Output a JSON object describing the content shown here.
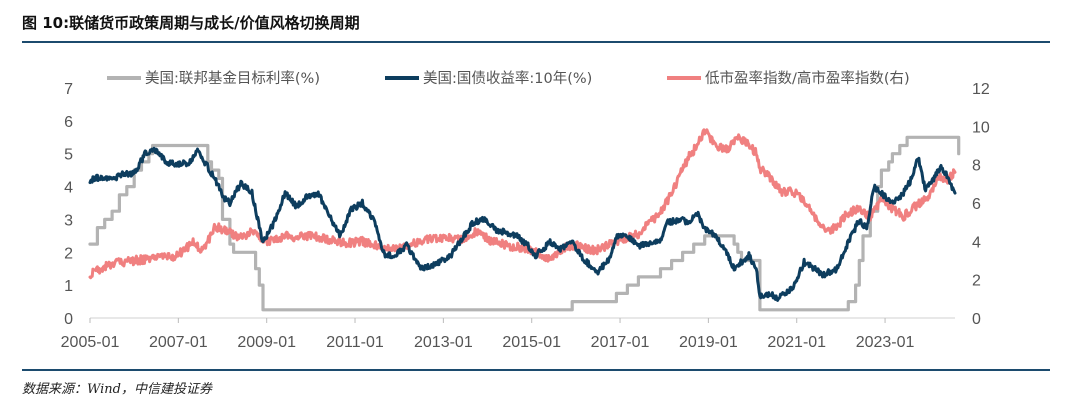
{
  "title": "图 10:联储货币政策周期与成长/价值风格切换周期",
  "source": "数据来源：Wind，中信建投证券",
  "chart_data": {
    "type": "line",
    "x_ticks": [
      "2005-01",
      "2007-01",
      "2009-01",
      "2011-01",
      "2013-01",
      "2015-01",
      "2017-01",
      "2019-01",
      "2021-01",
      "2023-01"
    ],
    "x_range": [
      "2005-01",
      "2024-08"
    ],
    "y_left": {
      "range": [
        0,
        7
      ],
      "ticks": [
        "0",
        "1",
        "2",
        "3",
        "4",
        "5",
        "6",
        "7"
      ]
    },
    "y_right": {
      "range": [
        0,
        12
      ],
      "ticks": [
        "0",
        "2",
        "4",
        "6",
        "8",
        "10",
        "12"
      ]
    },
    "grid": false,
    "legend_position": "top",
    "series": [
      {
        "name": "美国:联邦基金目标利率(%)",
        "axis": "left",
        "color": "#b3b3b3",
        "points": [
          [
            "2005-01",
            2.25
          ],
          [
            "2005-03",
            2.75
          ],
          [
            "2005-05",
            3.0
          ],
          [
            "2005-07",
            3.25
          ],
          [
            "2005-09",
            3.75
          ],
          [
            "2005-11",
            4.0
          ],
          [
            "2006-01",
            4.5
          ],
          [
            "2006-03",
            4.75
          ],
          [
            "2006-05",
            5.0
          ],
          [
            "2006-06",
            5.25
          ],
          [
            "2007-08",
            5.25
          ],
          [
            "2007-09",
            4.75
          ],
          [
            "2007-10",
            4.5
          ],
          [
            "2007-12",
            4.25
          ],
          [
            "2008-01",
            3.0
          ],
          [
            "2008-03",
            2.25
          ],
          [
            "2008-04",
            2.0
          ],
          [
            "2008-10",
            1.5
          ],
          [
            "2008-11",
            1.0
          ],
          [
            "2008-12",
            0.25
          ],
          [
            "2015-11",
            0.25
          ],
          [
            "2015-12",
            0.5
          ],
          [
            "2016-11",
            0.5
          ],
          [
            "2016-12",
            0.75
          ],
          [
            "2017-02",
            0.75
          ],
          [
            "2017-03",
            1.0
          ],
          [
            "2017-06",
            1.25
          ],
          [
            "2017-12",
            1.5
          ],
          [
            "2018-03",
            1.75
          ],
          [
            "2018-06",
            2.0
          ],
          [
            "2018-09",
            2.25
          ],
          [
            "2018-12",
            2.5
          ],
          [
            "2019-07",
            2.5
          ],
          [
            "2019-08",
            2.25
          ],
          [
            "2019-09",
            2.0
          ],
          [
            "2019-10",
            1.75
          ],
          [
            "2020-02",
            1.75
          ],
          [
            "2020-03",
            0.25
          ],
          [
            "2022-02",
            0.25
          ],
          [
            "2022-03",
            0.5
          ],
          [
            "2022-05",
            1.0
          ],
          [
            "2022-06",
            1.75
          ],
          [
            "2022-07",
            2.5
          ],
          [
            "2022-09",
            3.25
          ],
          [
            "2022-11",
            4.0
          ],
          [
            "2022-12",
            4.5
          ],
          [
            "2023-02",
            4.75
          ],
          [
            "2023-03",
            5.0
          ],
          [
            "2023-05",
            5.25
          ],
          [
            "2023-07",
            5.5
          ],
          [
            "2024-08",
            5.5
          ],
          [
            "2024-09",
            5.0
          ]
        ]
      },
      {
        "name": "美国:国债收益率:10年(%)",
        "axis": "left",
        "color": "#0d3d5e",
        "points": [
          [
            "2005-01",
            4.2
          ],
          [
            "2005-04",
            4.3
          ],
          [
            "2005-07",
            4.2
          ],
          [
            "2005-10",
            4.4
          ],
          [
            "2006-01",
            4.4
          ],
          [
            "2006-04",
            5.0
          ],
          [
            "2006-07",
            5.1
          ],
          [
            "2006-10",
            4.7
          ],
          [
            "2007-01",
            4.7
          ],
          [
            "2007-04",
            4.7
          ],
          [
            "2007-06",
            5.1
          ],
          [
            "2007-09",
            4.6
          ],
          [
            "2007-12",
            4.0
          ],
          [
            "2008-01",
            3.7
          ],
          [
            "2008-03",
            3.5
          ],
          [
            "2008-06",
            4.1
          ],
          [
            "2008-09",
            3.8
          ],
          [
            "2008-12",
            2.3
          ],
          [
            "2009-03",
            2.9
          ],
          [
            "2009-06",
            3.8
          ],
          [
            "2009-09",
            3.4
          ],
          [
            "2009-12",
            3.7
          ],
          [
            "2010-03",
            3.8
          ],
          [
            "2010-06",
            3.1
          ],
          [
            "2010-09",
            2.5
          ],
          [
            "2010-12",
            3.3
          ],
          [
            "2011-03",
            3.5
          ],
          [
            "2011-06",
            3.0
          ],
          [
            "2011-09",
            1.9
          ],
          [
            "2011-12",
            1.9
          ],
          [
            "2012-03",
            2.2
          ],
          [
            "2012-07",
            1.5
          ],
          [
            "2012-12",
            1.7
          ],
          [
            "2013-03",
            1.9
          ],
          [
            "2013-06",
            2.4
          ],
          [
            "2013-09",
            2.9
          ],
          [
            "2013-12",
            3.0
          ],
          [
            "2014-03",
            2.7
          ],
          [
            "2014-06",
            2.6
          ],
          [
            "2014-09",
            2.5
          ],
          [
            "2014-12",
            2.2
          ],
          [
            "2015-02",
            1.9
          ],
          [
            "2015-06",
            2.3
          ],
          [
            "2015-09",
            2.1
          ],
          [
            "2015-12",
            2.3
          ],
          [
            "2016-03",
            1.8
          ],
          [
            "2016-07",
            1.4
          ],
          [
            "2016-10",
            1.8
          ],
          [
            "2016-12",
            2.5
          ],
          [
            "2017-03",
            2.5
          ],
          [
            "2017-06",
            2.2
          ],
          [
            "2017-09",
            2.3
          ],
          [
            "2017-12",
            2.4
          ],
          [
            "2018-02",
            2.9
          ],
          [
            "2018-05",
            3.0
          ],
          [
            "2018-08",
            2.9
          ],
          [
            "2018-10",
            3.2
          ],
          [
            "2018-12",
            2.7
          ],
          [
            "2019-03",
            2.5
          ],
          [
            "2019-06",
            2.0
          ],
          [
            "2019-08",
            1.5
          ],
          [
            "2019-10",
            1.7
          ],
          [
            "2019-12",
            1.9
          ],
          [
            "2020-02",
            1.5
          ],
          [
            "2020-03",
            0.7
          ],
          [
            "2020-06",
            0.7
          ],
          [
            "2020-08",
            0.6
          ],
          [
            "2020-12",
            0.9
          ],
          [
            "2021-03",
            1.7
          ],
          [
            "2021-06",
            1.5
          ],
          [
            "2021-08",
            1.3
          ],
          [
            "2021-12",
            1.5
          ],
          [
            "2022-03",
            2.3
          ],
          [
            "2022-06",
            3.0
          ],
          [
            "2022-08",
            2.7
          ],
          [
            "2022-10",
            4.0
          ],
          [
            "2022-12",
            3.8
          ],
          [
            "2023-03",
            3.5
          ],
          [
            "2023-06",
            3.8
          ],
          [
            "2023-08",
            4.2
          ],
          [
            "2023-10",
            4.9
          ],
          [
            "2023-12",
            3.9
          ],
          [
            "2024-02",
            4.2
          ],
          [
            "2024-04",
            4.6
          ],
          [
            "2024-06",
            4.3
          ],
          [
            "2024-08",
            3.8
          ]
        ]
      },
      {
        "name": "低市盈率指数/高市盈率指数(右)",
        "axis": "right",
        "color": "#f08080",
        "points": [
          [
            "2005-01",
            2.3
          ],
          [
            "2005-06",
            2.8
          ],
          [
            "2006-01",
            3.0
          ],
          [
            "2006-06",
            3.1
          ],
          [
            "2006-12",
            3.2
          ],
          [
            "2007-03",
            3.6
          ],
          [
            "2007-05",
            4.0
          ],
          [
            "2007-07",
            3.5
          ],
          [
            "2007-09",
            4.0
          ],
          [
            "2007-11",
            4.8
          ],
          [
            "2008-01",
            4.6
          ],
          [
            "2008-06",
            4.2
          ],
          [
            "2008-10",
            4.6
          ],
          [
            "2008-12",
            4.0
          ],
          [
            "2009-03",
            4.0
          ],
          [
            "2009-06",
            4.3
          ],
          [
            "2009-09",
            4.2
          ],
          [
            "2010-01",
            4.3
          ],
          [
            "2010-06",
            4.1
          ],
          [
            "2010-11",
            3.9
          ],
          [
            "2011-03",
            4.0
          ],
          [
            "2011-09",
            3.6
          ],
          [
            "2012-03",
            3.8
          ],
          [
            "2012-09",
            4.1
          ],
          [
            "2013-01",
            4.2
          ],
          [
            "2013-06",
            4.1
          ],
          [
            "2013-10",
            4.5
          ],
          [
            "2014-02",
            4.0
          ],
          [
            "2014-06",
            3.8
          ],
          [
            "2014-12",
            3.6
          ],
          [
            "2015-06",
            3.1
          ],
          [
            "2015-10",
            3.7
          ],
          [
            "2016-01",
            3.8
          ],
          [
            "2016-06",
            3.5
          ],
          [
            "2016-12",
            4.0
          ],
          [
            "2017-06",
            4.4
          ],
          [
            "2017-12",
            5.5
          ],
          [
            "2018-03",
            6.5
          ],
          [
            "2018-06",
            7.8
          ],
          [
            "2018-08",
            8.5
          ],
          [
            "2018-10",
            9.0
          ],
          [
            "2018-12",
            9.8
          ],
          [
            "2019-03",
            9.0
          ],
          [
            "2019-06",
            8.8
          ],
          [
            "2019-09",
            9.5
          ],
          [
            "2019-12",
            9.0
          ],
          [
            "2020-02",
            8.6
          ],
          [
            "2020-03",
            7.8
          ],
          [
            "2020-06",
            7.3
          ],
          [
            "2020-09",
            6.6
          ],
          [
            "2020-12",
            6.6
          ],
          [
            "2021-03",
            6.1
          ],
          [
            "2021-06",
            5.3
          ],
          [
            "2021-09",
            4.5
          ],
          [
            "2021-12",
            4.8
          ],
          [
            "2022-03",
            5.5
          ],
          [
            "2022-06",
            5.7
          ],
          [
            "2022-09",
            5.3
          ],
          [
            "2022-12",
            6.2
          ],
          [
            "2023-03",
            5.7
          ],
          [
            "2023-06",
            5.3
          ],
          [
            "2023-09",
            5.8
          ],
          [
            "2023-12",
            6.2
          ],
          [
            "2024-02",
            6.7
          ],
          [
            "2024-04",
            7.4
          ],
          [
            "2024-06",
            7.2
          ],
          [
            "2024-08",
            7.6
          ]
        ]
      }
    ]
  }
}
